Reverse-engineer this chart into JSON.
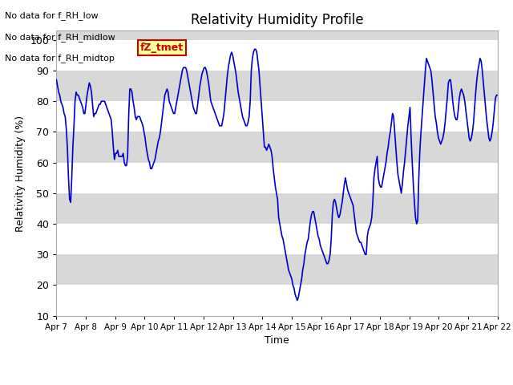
{
  "title": "Relativity Humidity Profile",
  "xlabel": "Time",
  "ylabel": "Relativity Humidity (%)",
  "ylim": [
    10,
    103
  ],
  "yticks": [
    10,
    20,
    30,
    40,
    50,
    60,
    70,
    80,
    90,
    100
  ],
  "line_color": "#0000cc",
  "line_width": 1.2,
  "legend_line_color": "#0000cc",
  "background_color": "#ffffff",
  "plot_bg_color": "#d8d8d8",
  "annotation_texts": [
    "No data for f_RH_low",
    "No data for f_RH_midlow",
    "No data for f_RH_midtop"
  ],
  "box_text": "fZ_tmet",
  "box_text_color": "#cc0000",
  "box_bg_color": "#ffff99",
  "box_edge_color": "#cc0000",
  "xtick_labels": [
    "Apr 7",
    "Apr 8",
    "Apr 9",
    "Apr 10",
    "Apr 11",
    "Apr 12",
    "Apr 13",
    "Apr 14",
    "Apr 15",
    "Apr 16",
    "Apr 17",
    "Apr 18",
    "Apr 19",
    "Apr 20",
    "Apr 21",
    "Apr 22"
  ],
  "date_start": 7,
  "date_end": 22,
  "humidity_values": [
    87,
    85,
    83,
    82,
    80,
    79,
    78,
    76,
    75,
    71,
    65,
    55,
    48,
    47,
    55,
    65,
    72,
    80,
    83,
    82,
    82,
    81,
    80,
    79,
    78,
    76,
    76,
    79,
    82,
    84,
    86,
    85,
    83,
    79,
    75,
    76,
    76,
    77,
    78,
    79,
    79,
    80,
    80,
    80,
    80,
    79,
    78,
    77,
    76,
    75,
    74,
    70,
    65,
    61,
    63,
    63,
    64,
    62,
    62,
    62,
    62,
    63,
    60,
    59,
    59,
    62,
    75,
    84,
    84,
    83,
    80,
    78,
    75,
    74,
    75,
    75,
    75,
    74,
    73,
    72,
    70,
    68,
    65,
    63,
    61,
    60,
    58,
    58,
    59,
    60,
    61,
    63,
    65,
    67,
    68,
    70,
    73,
    76,
    79,
    82,
    83,
    84,
    83,
    80,
    79,
    78,
    77,
    76,
    76,
    78,
    80,
    82,
    84,
    86,
    88,
    90,
    91,
    91,
    91,
    90,
    88,
    86,
    84,
    82,
    80,
    78,
    77,
    76,
    76,
    79,
    82,
    85,
    87,
    89,
    90,
    91,
    91,
    90,
    88,
    86,
    83,
    80,
    79,
    78,
    77,
    76,
    75,
    74,
    73,
    72,
    72,
    72,
    74,
    76,
    80,
    84,
    88,
    91,
    93,
    95,
    96,
    95,
    93,
    91,
    89,
    86,
    83,
    81,
    79,
    77,
    75,
    74,
    73,
    72,
    72,
    73,
    75,
    80,
    90,
    94,
    96,
    97,
    97,
    96,
    93,
    90,
    85,
    80,
    75,
    70,
    65,
    65,
    64,
    65,
    66,
    65,
    64,
    62,
    58,
    55,
    52,
    50,
    48,
    42,
    40,
    38,
    36,
    35,
    33,
    31,
    29,
    27,
    25,
    24,
    23,
    22,
    20,
    19,
    17,
    16,
    15,
    16,
    18,
    20,
    22,
    25,
    27,
    30,
    32,
    34,
    35,
    38,
    41,
    43,
    44,
    44,
    42,
    40,
    38,
    36,
    35,
    33,
    32,
    31,
    30,
    29,
    28,
    27,
    27,
    28,
    30,
    35,
    43,
    47,
    48,
    47,
    45,
    43,
    42,
    43,
    45,
    47,
    50,
    53,
    55,
    53,
    51,
    50,
    49,
    48,
    47,
    46,
    43,
    40,
    37,
    36,
    35,
    34,
    34,
    33,
    32,
    31,
    30,
    30,
    36,
    38,
    39,
    40,
    42,
    47,
    55,
    58,
    60,
    62,
    55,
    53,
    52,
    52,
    54,
    56,
    58,
    60,
    63,
    65,
    68,
    70,
    73,
    76,
    75,
    70,
    65,
    60,
    56,
    54,
    52,
    50,
    53,
    57,
    60,
    64,
    68,
    72,
    75,
    78,
    68,
    60,
    53,
    47,
    42,
    40,
    41,
    55,
    64,
    70,
    75,
    80,
    85,
    90,
    94,
    93,
    92,
    91,
    90,
    87,
    83,
    79,
    75,
    73,
    70,
    68,
    67,
    66,
    67,
    68,
    70,
    73,
    77,
    81,
    86,
    87,
    87,
    84,
    80,
    77,
    75,
    74,
    74,
    77,
    81,
    83,
    84,
    83,
    82,
    80,
    77,
    74,
    71,
    68,
    67,
    68,
    70,
    73,
    78,
    83,
    87,
    90,
    92,
    94,
    93,
    90,
    86,
    82,
    78,
    74,
    71,
    68,
    67,
    68,
    70,
    73,
    77,
    81,
    82,
    82
  ]
}
